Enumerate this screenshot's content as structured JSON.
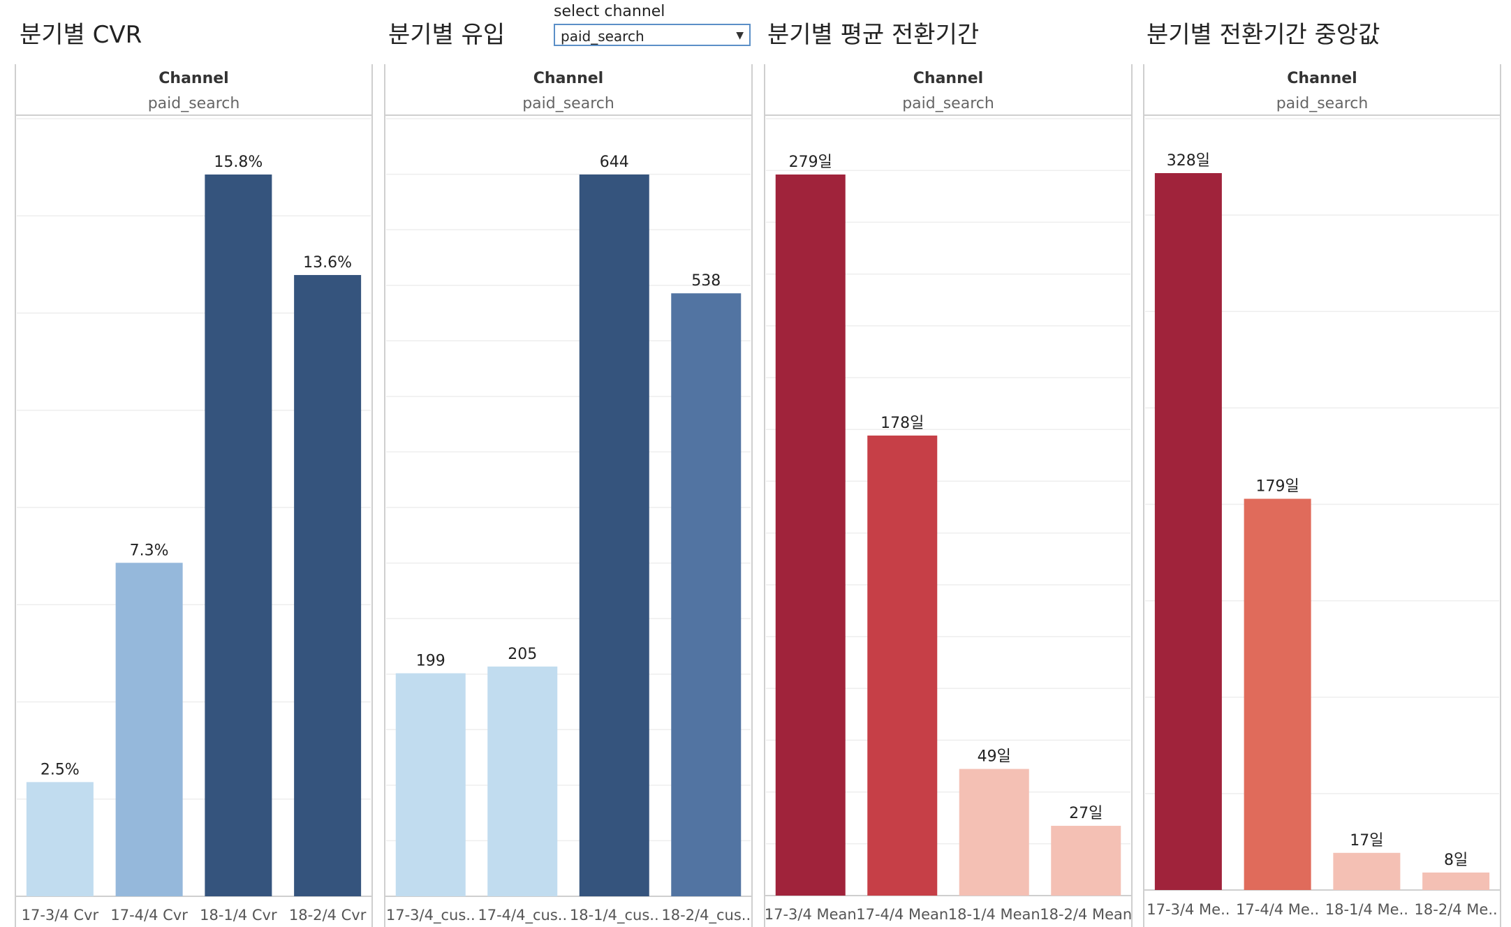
{
  "filter": {
    "label": "select channel",
    "value": "paid_search"
  },
  "icons": {
    "dropdown": "caret-down-icon"
  },
  "chart_data": [
    {
      "type": "bar",
      "title": "분기별 CVR",
      "header_label": "Channel",
      "header_value": "paid_search",
      "categories": [
        "17-3/4 Cvr",
        "17-4/4 Cvr",
        "18-1/4 Cvr",
        "18-2/4 Cvr"
      ],
      "values": [
        2.5,
        7.3,
        15.8,
        13.6
      ],
      "data_labels": [
        "2.5%",
        "7.3%",
        "15.8%",
        "13.6%"
      ],
      "colors": [
        "#c1dcef",
        "#95b8db",
        "#35547d",
        "#35547d"
      ],
      "ylim": [
        0,
        16.6
      ],
      "grid": true
    },
    {
      "type": "bar",
      "title": "분기별 유입",
      "header_label": "Channel",
      "header_value": "paid_search",
      "categories": [
        "17-3/4_cus..",
        "17-4/4_cus..",
        "18-1/4_cus..",
        "18-2/4_cus.."
      ],
      "values": [
        199,
        205,
        644,
        538
      ],
      "data_labels": [
        "199",
        "205",
        "644",
        "538"
      ],
      "colors": [
        "#c1dcef",
        "#c1dcef",
        "#35547d",
        "#5274a2"
      ],
      "ylim": [
        0,
        676
      ],
      "grid": true
    },
    {
      "type": "bar",
      "title": "분기별 평균 전환기간",
      "header_label": "Channel",
      "header_value": "paid_search",
      "categories": [
        "17-3/4 Mean",
        "17-4/4 Mean",
        "18-1/4 Mean",
        "18-2/4 Mean"
      ],
      "values": [
        279,
        178,
        49,
        27
      ],
      "data_labels": [
        "279일",
        "178일",
        "49일",
        "27일"
      ],
      "colors": [
        "#a0233b",
        "#c63f47",
        "#f4c0b4",
        "#f4c0b4"
      ],
      "ylim": [
        0,
        293
      ],
      "grid": true
    },
    {
      "type": "bar",
      "title": "분기별 전환기간 중앙값",
      "header_label": "Channel",
      "header_value": "paid_search",
      "categories": [
        "17-3/4 Me..",
        "17-4/4 Me..",
        "18-1/4 Me..",
        "18-2/4 Me.."
      ],
      "values": [
        328,
        179,
        17,
        8
      ],
      "data_labels": [
        "328일",
        "179일",
        "17일",
        "8일"
      ],
      "colors": [
        "#a0233b",
        "#e06b5b",
        "#f4c0b4",
        "#f4c0b4"
      ],
      "ylim": [
        0,
        343
      ],
      "grid": true
    }
  ]
}
